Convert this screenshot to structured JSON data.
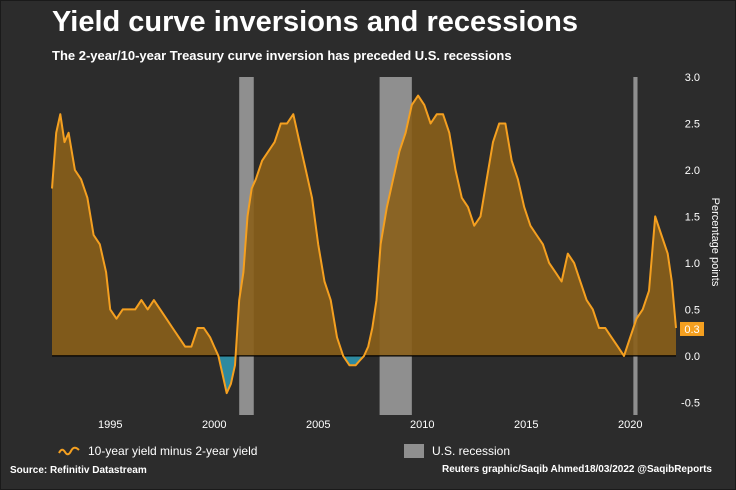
{
  "title": "Yield curve inversions and recessions",
  "subtitle": "The 2-year/10-year Treasury curve inversion has preceded U.S. recessions",
  "source": "Source: Refinitiv Datastream",
  "credit": "Reuters graphic/Saqib Ahmed18/03/2022 @SaqibReports",
  "colors": {
    "line": "#f5a020",
    "fill_positive": "#8a5f1a",
    "fill_negative": "#2e8aa0",
    "recession": "#8f8f8f"
  },
  "chart_data": {
    "type": "area",
    "xlim": [
      1992.2,
      2022.2
    ],
    "ylim": [
      -0.55,
      3.0
    ],
    "ylabel": "Percentage points",
    "x_ticks": [
      1995,
      2000,
      2005,
      2010,
      2015,
      2020
    ],
    "y_ticks": [
      -0.5,
      0.0,
      0.5,
      1.0,
      1.5,
      2.0,
      2.5,
      3.0
    ],
    "y_tick_labels": [
      "-0.5",
      "0.0",
      "0.5",
      "1.0",
      "1.5",
      "2.0",
      "2.5",
      "3.0"
    ],
    "last_value_label": "0.3",
    "recessions": [
      [
        2001.2,
        2001.9
      ],
      [
        2007.95,
        2009.5
      ],
      [
        2020.15,
        2020.35
      ]
    ],
    "series": [
      {
        "name": "10-year yield minus 2-year yield",
        "x": [
          1992.2,
          1992.4,
          1992.6,
          1992.8,
          1993.0,
          1993.3,
          1993.6,
          1993.9,
          1994.2,
          1994.5,
          1994.8,
          1995.0,
          1995.3,
          1995.6,
          1995.9,
          1996.2,
          1996.5,
          1996.8,
          1997.1,
          1997.4,
          1997.7,
          1998.0,
          1998.3,
          1998.6,
          1998.9,
          1999.2,
          1999.5,
          1999.8,
          2000.0,
          2000.2,
          2000.4,
          2000.6,
          2000.8,
          2001.0,
          2001.2,
          2001.4,
          2001.6,
          2001.8,
          2002.0,
          2002.3,
          2002.6,
          2002.9,
          2003.2,
          2003.5,
          2003.8,
          2004.1,
          2004.4,
          2004.7,
          2005.0,
          2005.3,
          2005.6,
          2005.9,
          2006.2,
          2006.5,
          2006.8,
          2007.0,
          2007.2,
          2007.4,
          2007.6,
          2007.8,
          2008.0,
          2008.3,
          2008.6,
          2008.9,
          2009.2,
          2009.5,
          2009.8,
          2010.1,
          2010.4,
          2010.7,
          2011.0,
          2011.3,
          2011.6,
          2011.9,
          2012.2,
          2012.5,
          2012.8,
          2013.1,
          2013.4,
          2013.7,
          2014.0,
          2014.3,
          2014.6,
          2014.9,
          2015.2,
          2015.5,
          2015.8,
          2016.1,
          2016.4,
          2016.7,
          2017.0,
          2017.3,
          2017.6,
          2017.9,
          2018.2,
          2018.5,
          2018.8,
          2019.1,
          2019.4,
          2019.7,
          2020.0,
          2020.3,
          2020.6,
          2020.9,
          2021.2,
          2021.5,
          2021.8,
          2022.0,
          2022.2
        ],
        "values": [
          1.8,
          2.4,
          2.6,
          2.3,
          2.4,
          2.0,
          1.9,
          1.7,
          1.3,
          1.2,
          0.9,
          0.5,
          0.4,
          0.5,
          0.5,
          0.5,
          0.6,
          0.5,
          0.6,
          0.5,
          0.4,
          0.3,
          0.2,
          0.1,
          0.1,
          0.3,
          0.3,
          0.2,
          0.1,
          0.0,
          -0.2,
          -0.4,
          -0.3,
          -0.1,
          0.6,
          0.9,
          1.5,
          1.8,
          1.9,
          2.1,
          2.2,
          2.3,
          2.5,
          2.5,
          2.6,
          2.3,
          2.0,
          1.7,
          1.2,
          0.8,
          0.6,
          0.2,
          0.0,
          -0.1,
          -0.1,
          -0.05,
          0.0,
          0.1,
          0.3,
          0.6,
          1.2,
          1.6,
          1.9,
          2.2,
          2.4,
          2.7,
          2.8,
          2.7,
          2.5,
          2.6,
          2.6,
          2.4,
          2.0,
          1.7,
          1.6,
          1.4,
          1.5,
          1.9,
          2.3,
          2.5,
          2.5,
          2.1,
          1.9,
          1.6,
          1.4,
          1.3,
          1.2,
          1.0,
          0.9,
          0.8,
          1.1,
          1.0,
          0.8,
          0.6,
          0.5,
          0.3,
          0.3,
          0.2,
          0.1,
          0.0,
          0.2,
          0.4,
          0.5,
          0.7,
          1.5,
          1.3,
          1.1,
          0.8,
          0.3
        ]
      }
    ],
    "legend_recession": "U.S. recession"
  }
}
